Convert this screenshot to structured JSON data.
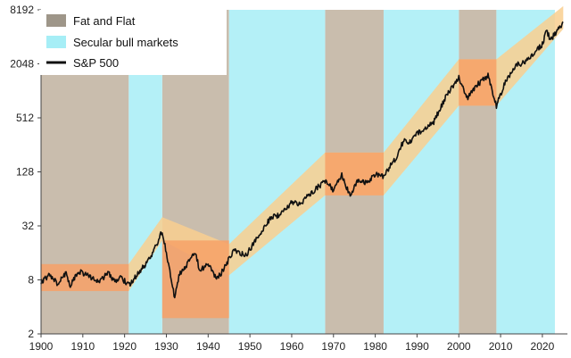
{
  "chart_data": {
    "type": "line",
    "x_axis": {
      "min": 1900,
      "max": 2026,
      "ticks": [
        1900,
        1910,
        1920,
        1930,
        1940,
        1950,
        1960,
        1970,
        1980,
        1990,
        2000,
        2010,
        2020
      ]
    },
    "y_axis": {
      "scale": "log2",
      "min": 2,
      "max": 8192,
      "ticks": [
        2,
        8,
        32,
        128,
        512,
        2048,
        8192
      ]
    },
    "legend": {
      "placement": "top-left",
      "items": [
        {
          "label": "Fat and Flat",
          "kind": "swatch",
          "color": "#9e9689"
        },
        {
          "label": "Secular bull markets",
          "kind": "swatch",
          "color": "#a6eef6"
        },
        {
          "label": "S&P 500",
          "kind": "line",
          "color": "#111111"
        }
      ]
    },
    "colors": {
      "fat_and_flat": "#c9bdad",
      "secular_bull": "#b4f0f7",
      "channel": "#f9cf8f",
      "flat_box": "#f7a167",
      "line": "#111111"
    },
    "fat_and_flat_periods": [
      [
        1900,
        1921
      ],
      [
        1929,
        1945
      ],
      [
        1968,
        1982
      ],
      [
        2000,
        2009
      ]
    ],
    "secular_bull_periods": [
      [
        1921,
        1929
      ],
      [
        1945,
        1968
      ],
      [
        1982,
        2000
      ],
      [
        2009,
        2023
      ]
    ],
    "flat_boxes": [
      {
        "x": [
          1900,
          1921
        ],
        "y": [
          6,
          12
        ]
      },
      {
        "x": [
          1929,
          1945
        ],
        "y": [
          3,
          22
        ]
      },
      {
        "x": [
          1968,
          1982
        ],
        "y": [
          70,
          210
        ]
      },
      {
        "x": [
          2000,
          2009
        ],
        "y": [
          700,
          2300
        ]
      }
    ],
    "channel": {
      "lower": [
        [
          1921,
          6
        ],
        [
          1929,
          22
        ],
        [
          1945,
          9
        ],
        [
          1968,
          70
        ],
        [
          1982,
          70
        ],
        [
          2000,
          700
        ],
        [
          2009,
          700
        ],
        [
          2025,
          5000
        ]
      ],
      "upper": [
        [
          1921,
          12
        ],
        [
          1929,
          40
        ],
        [
          1945,
          20
        ],
        [
          1968,
          210
        ],
        [
          1982,
          210
        ],
        [
          2000,
          2300
        ],
        [
          2009,
          2300
        ],
        [
          2025,
          9000
        ]
      ]
    },
    "series": [
      {
        "name": "S&P 500",
        "points": [
          [
            1900,
            7.5
          ],
          [
            1902,
            9.0
          ],
          [
            1904,
            7.2
          ],
          [
            1906,
            9.5
          ],
          [
            1907,
            7.0
          ],
          [
            1909,
            10.0
          ],
          [
            1911,
            9.2
          ],
          [
            1913,
            8.0
          ],
          [
            1914,
            7.8
          ],
          [
            1916,
            9.5
          ],
          [
            1918,
            7.6
          ],
          [
            1919,
            8.6
          ],
          [
            1921,
            7.0
          ],
          [
            1923,
            9.0
          ],
          [
            1925,
            12.0
          ],
          [
            1927,
            17.0
          ],
          [
            1929,
            28.0
          ],
          [
            1930,
            16.0
          ],
          [
            1932,
            5.0
          ],
          [
            1933,
            9.0
          ],
          [
            1937,
            16.0
          ],
          [
            1938,
            10.0
          ],
          [
            1940,
            12.0
          ],
          [
            1942,
            8.0
          ],
          [
            1944,
            11.0
          ],
          [
            1946,
            17.0
          ],
          [
            1949,
            15.0
          ],
          [
            1952,
            24.0
          ],
          [
            1955,
            40.0
          ],
          [
            1957,
            42.0
          ],
          [
            1960,
            58.0
          ],
          [
            1962,
            56.0
          ],
          [
            1966,
            85.0
          ],
          [
            1968,
            100.0
          ],
          [
            1970,
            80.0
          ],
          [
            1972,
            118.0
          ],
          [
            1974,
            68.0
          ],
          [
            1976,
            105.0
          ],
          [
            1978,
            95.0
          ],
          [
            1980,
            120.0
          ],
          [
            1982,
            115.0
          ],
          [
            1985,
            185.0
          ],
          [
            1987,
            300.0
          ],
          [
            1988,
            260.0
          ],
          [
            1990,
            340.0
          ],
          [
            1994,
            460.0
          ],
          [
            1997,
            900.0
          ],
          [
            2000,
            1450.0
          ],
          [
            2002,
            850.0
          ],
          [
            2004,
            1150.0
          ],
          [
            2007,
            1500.0
          ],
          [
            2009,
            700.0
          ],
          [
            2011,
            1250.0
          ],
          [
            2014,
            2000.0
          ],
          [
            2016,
            2150.0
          ],
          [
            2018,
            2650.0
          ],
          [
            2020,
            3400.0
          ],
          [
            2021,
            4700.0
          ],
          [
            2022,
            3800.0
          ],
          [
            2025,
            6000.0
          ]
        ]
      }
    ]
  }
}
